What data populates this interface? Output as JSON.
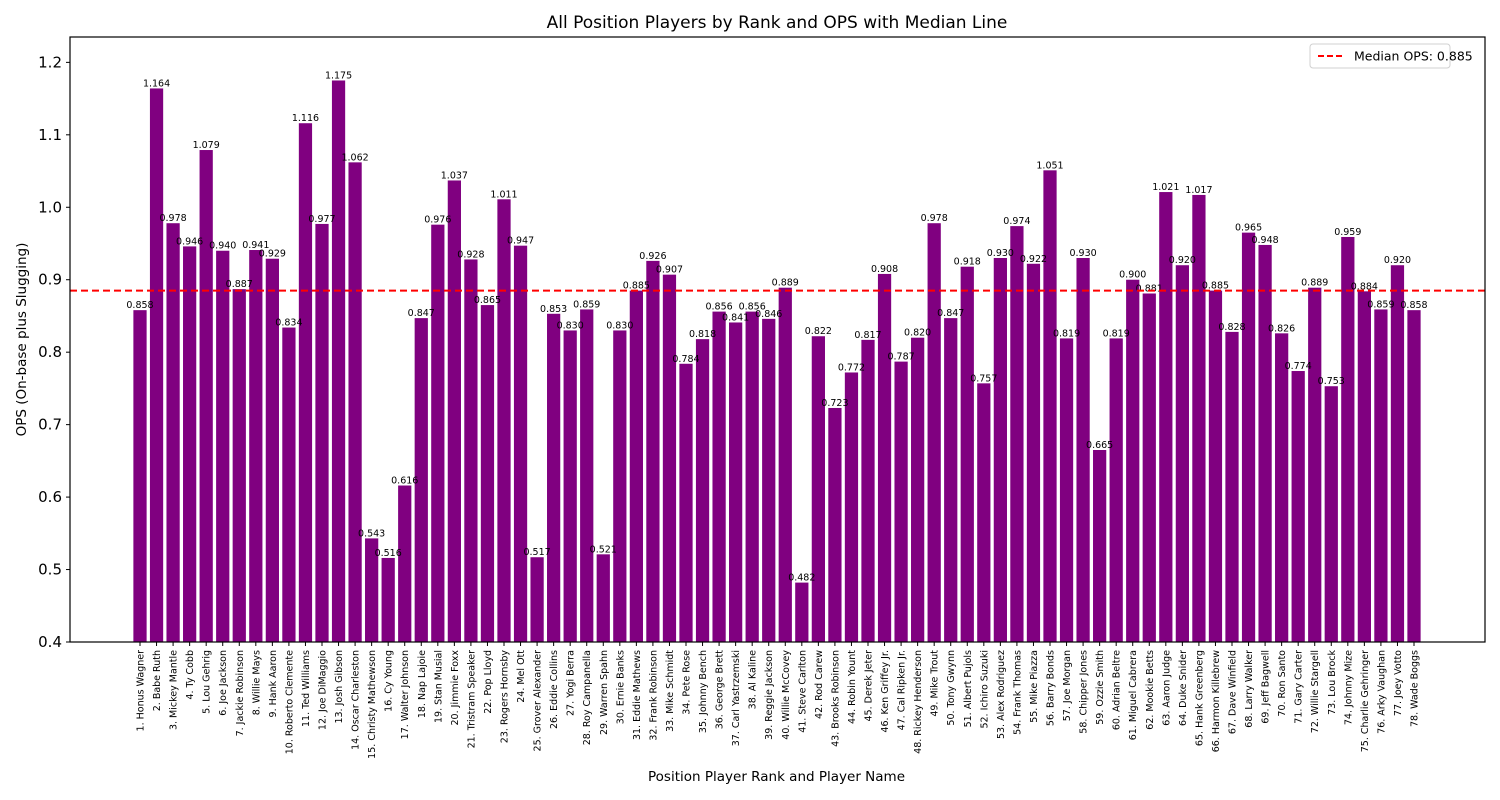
{
  "chart_data": {
    "type": "bar",
    "title": "All Position Players by Rank and OPS with Median Line",
    "xlabel": "Position Player Rank and Player Name",
    "ylabel": "OPS (On-base plus Slugging)",
    "ylim": [
      0.4,
      1.235
    ],
    "yticks": [
      0.4,
      0.5,
      0.6,
      0.7,
      0.8,
      0.9,
      1.0,
      1.1,
      1.2
    ],
    "ytick_labels": [
      "0.4",
      "0.5",
      "0.6",
      "0.7",
      "0.8",
      "0.9",
      "1.0",
      "1.1",
      "1.2"
    ],
    "grid": false,
    "bar_color": "#800080",
    "legend": {
      "position": "top-right",
      "entries": [
        {
          "label": "Median OPS: 0.885",
          "color": "#ff0000",
          "style": "dashed"
        }
      ]
    },
    "median": {
      "value": 0.885,
      "color": "#ff0000"
    },
    "categories": [
      "1. Honus Wagner",
      "2. Babe Ruth",
      "3. Mickey Mantle",
      "4. Ty Cobb",
      "5. Lou Gehrig",
      "6. Joe Jackson",
      "7. Jackie Robinson",
      "8. Willie Mays",
      "9. Hank Aaron",
      "10. Roberto Clemente",
      "11. Ted Williams",
      "12. Joe DiMaggio",
      "13. Josh Gibson",
      "14. Oscar Charleston",
      "15. Christy Mathewson",
      "16. Cy Young",
      "17. Walter Johnson",
      "18. Nap Lajoie",
      "19. Stan Musial",
      "20. Jimmie Foxx",
      "21. Tristram Speaker",
      "22. Pop Lloyd",
      "23. Rogers Hornsby",
      "24. Mel Ott",
      "25. Grover Alexander",
      "26. Eddie Collins",
      "27. Yogi Berra",
      "28. Roy Campanella",
      "29. Warren Spahn",
      "30. Ernie Banks",
      "31. Eddie Mathews",
      "32. Frank Robinson",
      "33. Mike Schmidt",
      "34. Pete Rose",
      "35. Johnny Bench",
      "36. George Brett",
      "37. Carl Yastrzemski",
      "38. Al Kaline",
      "39. Reggie Jackson",
      "40. Willie McCovey",
      "41. Steve Carlton",
      "42. Rod Carew",
      "43. Brooks Robinson",
      "44. Robin Yount",
      "45. Derek Jeter",
      "46. Ken Griffey Jr.",
      "47. Cal Ripken Jr.",
      "48. Rickey Henderson",
      "49. Mike Trout",
      "50. Tony Gwynn",
      "51. Albert Pujols",
      "52. Ichiro Suzuki",
      "53. Alex Rodriguez",
      "54. Frank Thomas",
      "55. Mike Piazza",
      "56. Barry Bonds",
      "57. Joe Morgan",
      "58. Chipper Jones",
      "59. Ozzie Smith",
      "60. Adrian Beltre",
      "61. Miguel Cabrera",
      "62. Mookie Betts",
      "63. Aaron Judge",
      "64. Duke Snider",
      "65. Hank Greenberg",
      "66. Harmon Killebrew",
      "67. Dave Winfield",
      "68. Larry Walker",
      "69. Jeff Bagwell",
      "70. Ron Santo",
      "71. Gary Carter",
      "72. Willie Stargell",
      "73. Lou Brock",
      "74. Johnny Mize",
      "75. Charlie Gehringer",
      "76. Arky Vaughan",
      "77. Joey Votto",
      "78. Wade Boggs"
    ],
    "values": [
      0.858,
      1.164,
      0.978,
      0.946,
      1.079,
      0.94,
      0.887,
      0.941,
      0.929,
      0.834,
      1.116,
      0.977,
      1.175,
      1.062,
      0.543,
      0.516,
      0.616,
      0.847,
      0.976,
      1.037,
      0.928,
      0.865,
      1.011,
      0.947,
      0.517,
      0.853,
      0.83,
      0.859,
      0.521,
      0.83,
      0.885,
      0.926,
      0.907,
      0.784,
      0.818,
      0.856,
      0.841,
      0.856,
      0.846,
      0.889,
      0.482,
      0.822,
      0.723,
      0.772,
      0.817,
      0.908,
      0.787,
      0.82,
      0.978,
      0.847,
      0.918,
      0.757,
      0.93,
      0.974,
      0.922,
      1.051,
      0.819,
      0.93,
      0.665,
      0.819,
      0.9,
      0.881,
      1.021,
      0.92,
      1.017,
      0.885,
      0.828,
      0.965,
      0.948,
      0.826,
      0.774,
      0.889,
      0.753,
      0.959,
      0.884,
      0.859,
      0.92,
      0.858
    ],
    "value_labels": [
      "0.858",
      "1.164",
      "0.978",
      "0.946",
      "1.079",
      "0.940",
      "0.887",
      "0.941",
      "0.929",
      "0.834",
      "1.116",
      "0.977",
      "1.175",
      "1.062",
      "0.543",
      "0.516",
      "0.616",
      "0.847",
      "0.976",
      "1.037",
      "0.928",
      "0.865",
      "1.011",
      "0.947",
      "0.517",
      "0.853",
      "0.830",
      "0.859",
      "0.521",
      "0.830",
      "0.885",
      "0.926",
      "0.907",
      "0.784",
      "0.818",
      "0.856",
      "0.841",
      "0.856",
      "0.846",
      "0.889",
      "0.482",
      "0.822",
      "0.723",
      "0.772",
      "0.817",
      "0.908",
      "0.787",
      "0.820",
      "0.978",
      "0.847",
      "0.918",
      "0.757",
      "0.930",
      "0.974",
      "0.922",
      "1.051",
      "0.819",
      "0.930",
      "0.665",
      "0.819",
      "0.900",
      "0.881",
      "1.021",
      "0.920",
      "1.017",
      "0.885",
      "0.828",
      "0.965",
      "0.948",
      "0.826",
      "0.774",
      "0.889",
      "0.753",
      "0.959",
      "0.884",
      "0.859",
      "0.920",
      "0.858"
    ]
  }
}
